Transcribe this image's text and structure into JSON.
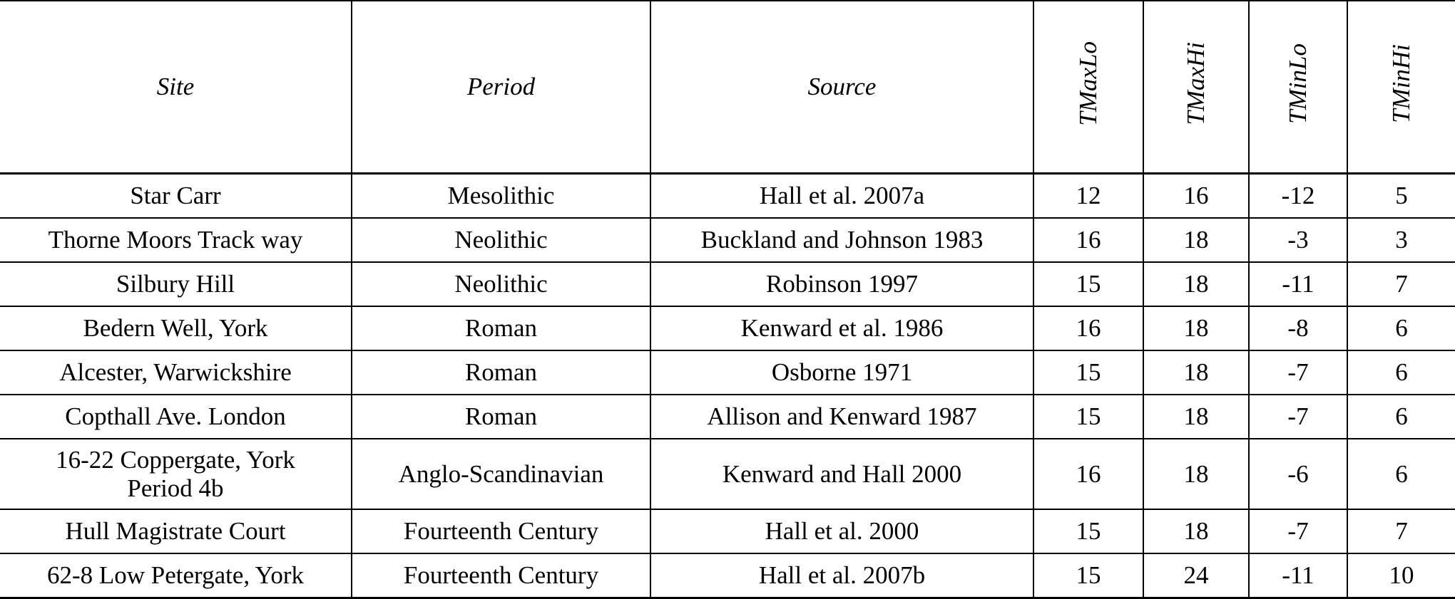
{
  "table": {
    "headers": [
      "Site",
      "Period",
      "Source",
      "TMaxLo",
      "TMaxHi",
      "TMinLo",
      "TMinHi"
    ],
    "rows": [
      [
        "Star Carr",
        "Mesolithic",
        "Hall et al. 2007a",
        "12",
        "16",
        "-12",
        "5"
      ],
      [
        "Thorne Moors Track way",
        "Neolithic",
        "Buckland and Johnson 1983",
        "16",
        "18",
        "-3",
        "3"
      ],
      [
        "Silbury Hill",
        "Neolithic",
        "Robinson 1997",
        "15",
        "18",
        "-11",
        "7"
      ],
      [
        "Bedern Well, York",
        "Roman",
        "Kenward et al. 1986",
        "16",
        "18",
        "-8",
        "6"
      ],
      [
        "Alcester, Warwickshire",
        "Roman",
        "Osborne 1971",
        "15",
        "18",
        "-7",
        "6"
      ],
      [
        "Copthall Ave. London",
        "Roman",
        "Allison and Kenward 1987",
        "15",
        "18",
        "-7",
        "6"
      ],
      [
        "16-22 Coppergate, York Period 4b",
        "Anglo-Scandinavian",
        "Kenward and Hall 2000",
        "16",
        "18",
        "-6",
        "6"
      ],
      [
        "Hull Magistrate Court",
        "Fourteenth Century",
        "Hall et al. 2000",
        "15",
        "18",
        "-7",
        "7"
      ],
      [
        "62-8 Low Petergate, York",
        "Fourteenth Century",
        "Hall et al. 2007b",
        "15",
        "24",
        "-11",
        "10"
      ]
    ]
  }
}
